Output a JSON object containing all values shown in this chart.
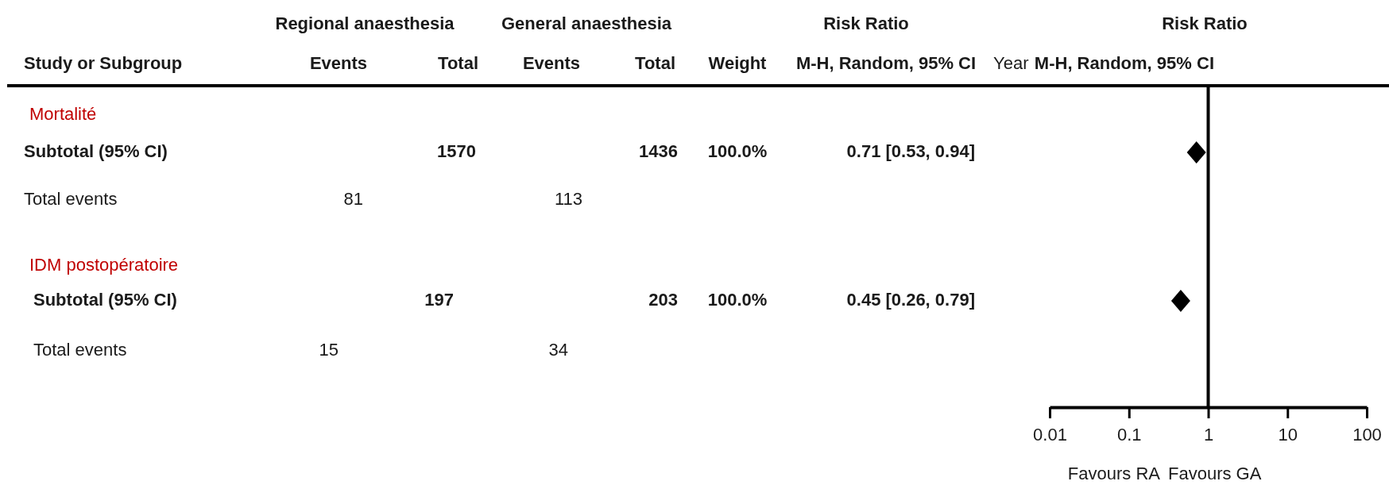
{
  "chart_data": {
    "type": "scatter",
    "orientation": "horizontal",
    "marker": "diamond",
    "color": "#000000",
    "categories": [
      null,
      null
    ],
    "values": [
      0.71,
      0.45
    ],
    "value_labels": [
      "0.71 [0.53, 0.94]",
      "0.45 [0.26, 0.79]"
    ],
    "log": "x",
    "xlim": [
      0.01,
      100
    ],
    "xticks": [
      0.01,
      0.1,
      1,
      10,
      100
    ],
    "ref_lines": [
      {
        "axis": "x",
        "value": 1
      }
    ],
    "grid": false,
    "annotations": [
      "Regional anaesthesia",
      "General anaesthesia",
      "Risk Ratio",
      "Risk Ratio",
      "Study or Subgroup",
      "Events",
      "Total",
      "Events",
      "Total",
      "Weight",
      "M-H, Random, 95% CI",
      "Year",
      "M-H, Random, 95% CI",
      "Mortalité",
      "Subtotal (95% CI)",
      "1570",
      "1436",
      "100.0%",
      "Total events",
      "81",
      "113",
      "IDM postopératoire",
      "Subtotal (95% CI)",
      "197",
      "203",
      "100.0%",
      "Total events",
      "15",
      "34",
      "Favours RA",
      "Favours GA"
    ]
  }
}
